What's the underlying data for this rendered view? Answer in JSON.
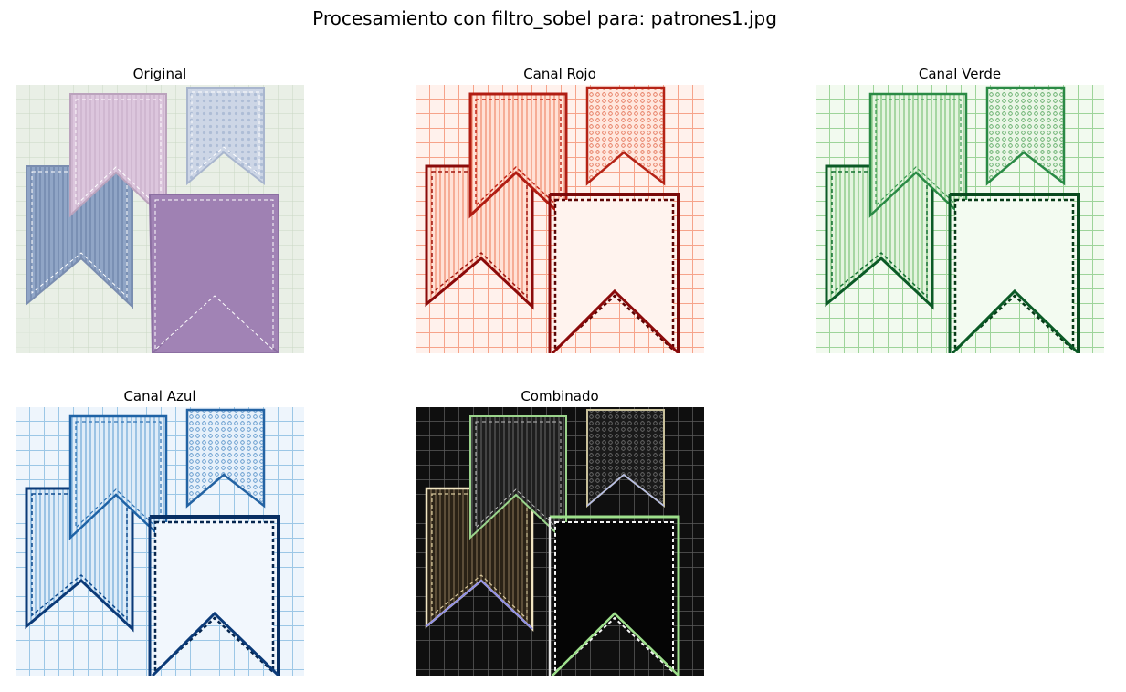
{
  "figure": {
    "suptitle": "Procesamiento con filtro_sobel para: patrones1.jpg"
  },
  "panels": [
    {
      "title": "Original"
    },
    {
      "title": "Canal Rojo"
    },
    {
      "title": "Canal Verde"
    },
    {
      "title": "Canal Azul"
    },
    {
      "title": "Combinado"
    }
  ]
}
